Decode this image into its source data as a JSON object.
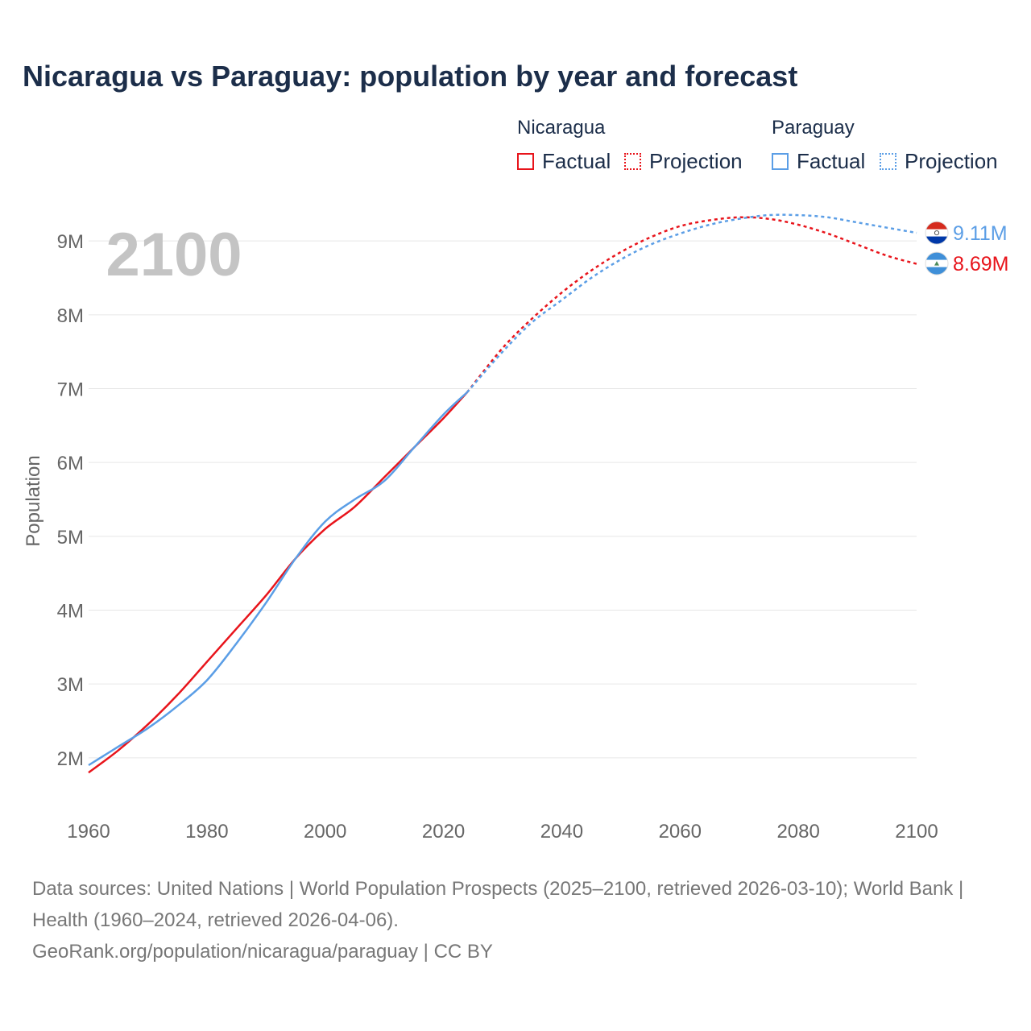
{
  "chart_data": {
    "type": "line",
    "title": "Nicaragua vs Paraguay: population by year and forecast",
    "ylabel": "Population",
    "xlabel": "",
    "xlim": [
      1960,
      2100
    ],
    "ylim": [
      1.3,
      9.7
    ],
    "x_ticks": [
      1960,
      1980,
      2000,
      2020,
      2040,
      2060,
      2080,
      2100
    ],
    "x_tick_labels": [
      "1960",
      "1980",
      "2000",
      "2020",
      "2040",
      "2060",
      "2080",
      "2100"
    ],
    "y_ticks": [
      2,
      3,
      4,
      5,
      6,
      7,
      8,
      9
    ],
    "y_tick_labels": [
      "2M",
      "3M",
      "4M",
      "5M",
      "6M",
      "7M",
      "8M",
      "9M"
    ],
    "big_year_label": "2100",
    "legend": {
      "groups": [
        {
          "name": "Nicaragua",
          "factual_label": "Factual",
          "projection_label": "Projection"
        },
        {
          "name": "Paraguay",
          "factual_label": "Factual",
          "projection_label": "Projection"
        }
      ]
    },
    "series": [
      {
        "name": "Nicaragua",
        "color": "#e8141b",
        "end_label": "8.69M",
        "factual_x": [
          1960,
          1965,
          1970,
          1975,
          1980,
          1985,
          1990,
          1995,
          2000,
          2005,
          2010,
          2015,
          2020,
          2024
        ],
        "factual_y": [
          1.8,
          2.1,
          2.45,
          2.85,
          3.3,
          3.75,
          4.2,
          4.7,
          5.1,
          5.4,
          5.8,
          6.2,
          6.6,
          6.95
        ],
        "projection_x": [
          2024,
          2030,
          2035,
          2040,
          2045,
          2050,
          2055,
          2060,
          2065,
          2070,
          2075,
          2080,
          2085,
          2090,
          2095,
          2100
        ],
        "projection_y": [
          6.95,
          7.55,
          7.95,
          8.3,
          8.6,
          8.85,
          9.05,
          9.2,
          9.28,
          9.32,
          9.3,
          9.22,
          9.1,
          8.95,
          8.8,
          8.69
        ]
      },
      {
        "name": "Paraguay",
        "color": "#5b9ee6",
        "end_label": "9.11M",
        "factual_x": [
          1960,
          1965,
          1970,
          1975,
          1980,
          1985,
          1990,
          1995,
          2000,
          2005,
          2010,
          2015,
          2020,
          2024
        ],
        "factual_y": [
          1.9,
          2.15,
          2.4,
          2.7,
          3.05,
          3.55,
          4.1,
          4.7,
          5.2,
          5.5,
          5.75,
          6.2,
          6.65,
          6.95
        ],
        "projection_x": [
          2024,
          2030,
          2035,
          2040,
          2045,
          2050,
          2055,
          2060,
          2065,
          2070,
          2075,
          2080,
          2085,
          2090,
          2095,
          2100
        ],
        "projection_y": [
          6.95,
          7.5,
          7.9,
          8.2,
          8.5,
          8.75,
          8.95,
          9.1,
          9.22,
          9.3,
          9.35,
          9.35,
          9.32,
          9.25,
          9.18,
          9.11
        ]
      }
    ]
  },
  "footer": {
    "sources": "Data sources: United Nations | World Population Prospects (2025–2100, retrieved 2026-03-10); World Bank | Health (1960–2024, retrieved 2026-04-06).",
    "credit": "GeoRank.org/population/nicaragua/paraguay | CC BY"
  }
}
